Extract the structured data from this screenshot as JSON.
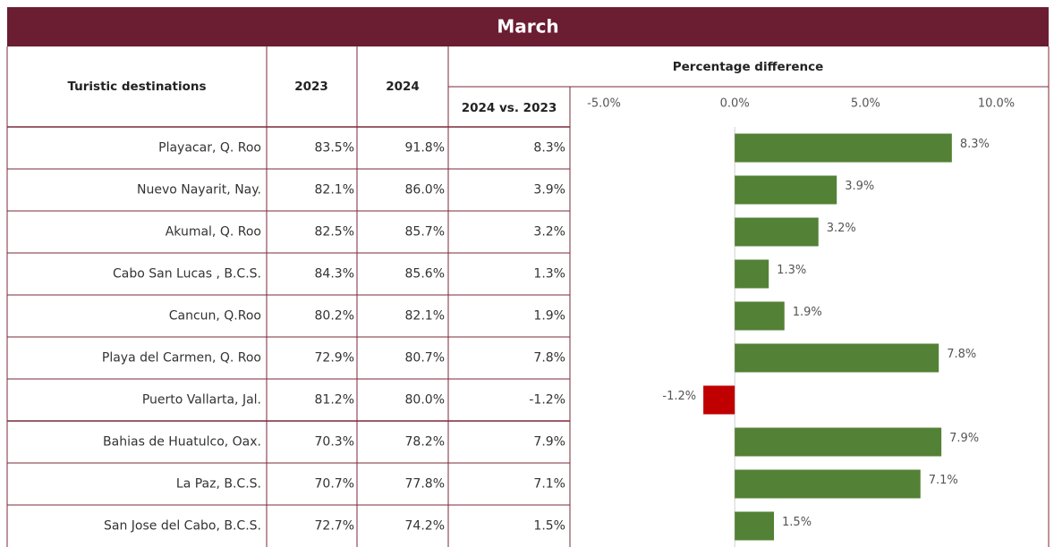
{
  "chart_data": {
    "type": "bar",
    "orientation": "horizontal",
    "title": "March",
    "header": {
      "destinations": "Turistic destinations",
      "diff_title": "Percentage difference"
    },
    "categories": [
      "Playacar, Q. Roo",
      "Nuevo Nayarit, Nay.",
      "Akumal, Q. Roo",
      "Cabo San Lucas , B.C.S.",
      "Cancun, Q.Roo",
      "Playa del Carmen, Q. Roo",
      "Puerto Vallarta, Jal.",
      "Bahias de Huatulco, Oax.",
      "La Paz, B.C.S.",
      "San Jose del Cabo, B.C.S."
    ],
    "columns": [
      {
        "name": "2023",
        "values": [
          83.5,
          82.1,
          82.5,
          84.3,
          80.2,
          72.9,
          81.2,
          70.3,
          70.7,
          72.7
        ],
        "value_labels": [
          "83.5%",
          "82.1%",
          "82.5%",
          "84.3%",
          "80.2%",
          "72.9%",
          "81.2%",
          "70.3%",
          "70.7%",
          "72.7%"
        ]
      },
      {
        "name": "2024",
        "values": [
          91.8,
          86.0,
          85.7,
          85.6,
          82.1,
          80.7,
          80.0,
          78.2,
          77.8,
          74.2
        ],
        "value_labels": [
          "91.8%",
          "86.0%",
          "85.7%",
          "85.6%",
          "82.1%",
          "80.7%",
          "80.0%",
          "78.2%",
          "77.8%",
          "74.2%"
        ]
      }
    ],
    "series": [
      {
        "name": "2024 vs. 2023",
        "color": "#538135",
        "negative_color": "#c00000",
        "values": [
          8.3,
          3.9,
          3.2,
          1.3,
          1.9,
          7.8,
          -1.2,
          7.9,
          7.1,
          1.5
        ],
        "value_labels": [
          "8.3%",
          "3.9%",
          "3.2%",
          "1.3%",
          "1.9%",
          "7.8%",
          "-1.2%",
          "7.9%",
          "7.1%",
          "1.5%"
        ]
      }
    ],
    "xlim": [
      -6.3,
      12
    ],
    "xticks": [
      {
        "value": -5,
        "label": "-5.0%"
      },
      {
        "value": 0,
        "label": "0.0%"
      },
      {
        "value": 5,
        "label": "5.0%"
      },
      {
        "value": 10,
        "label": "10.0%"
      }
    ]
  }
}
